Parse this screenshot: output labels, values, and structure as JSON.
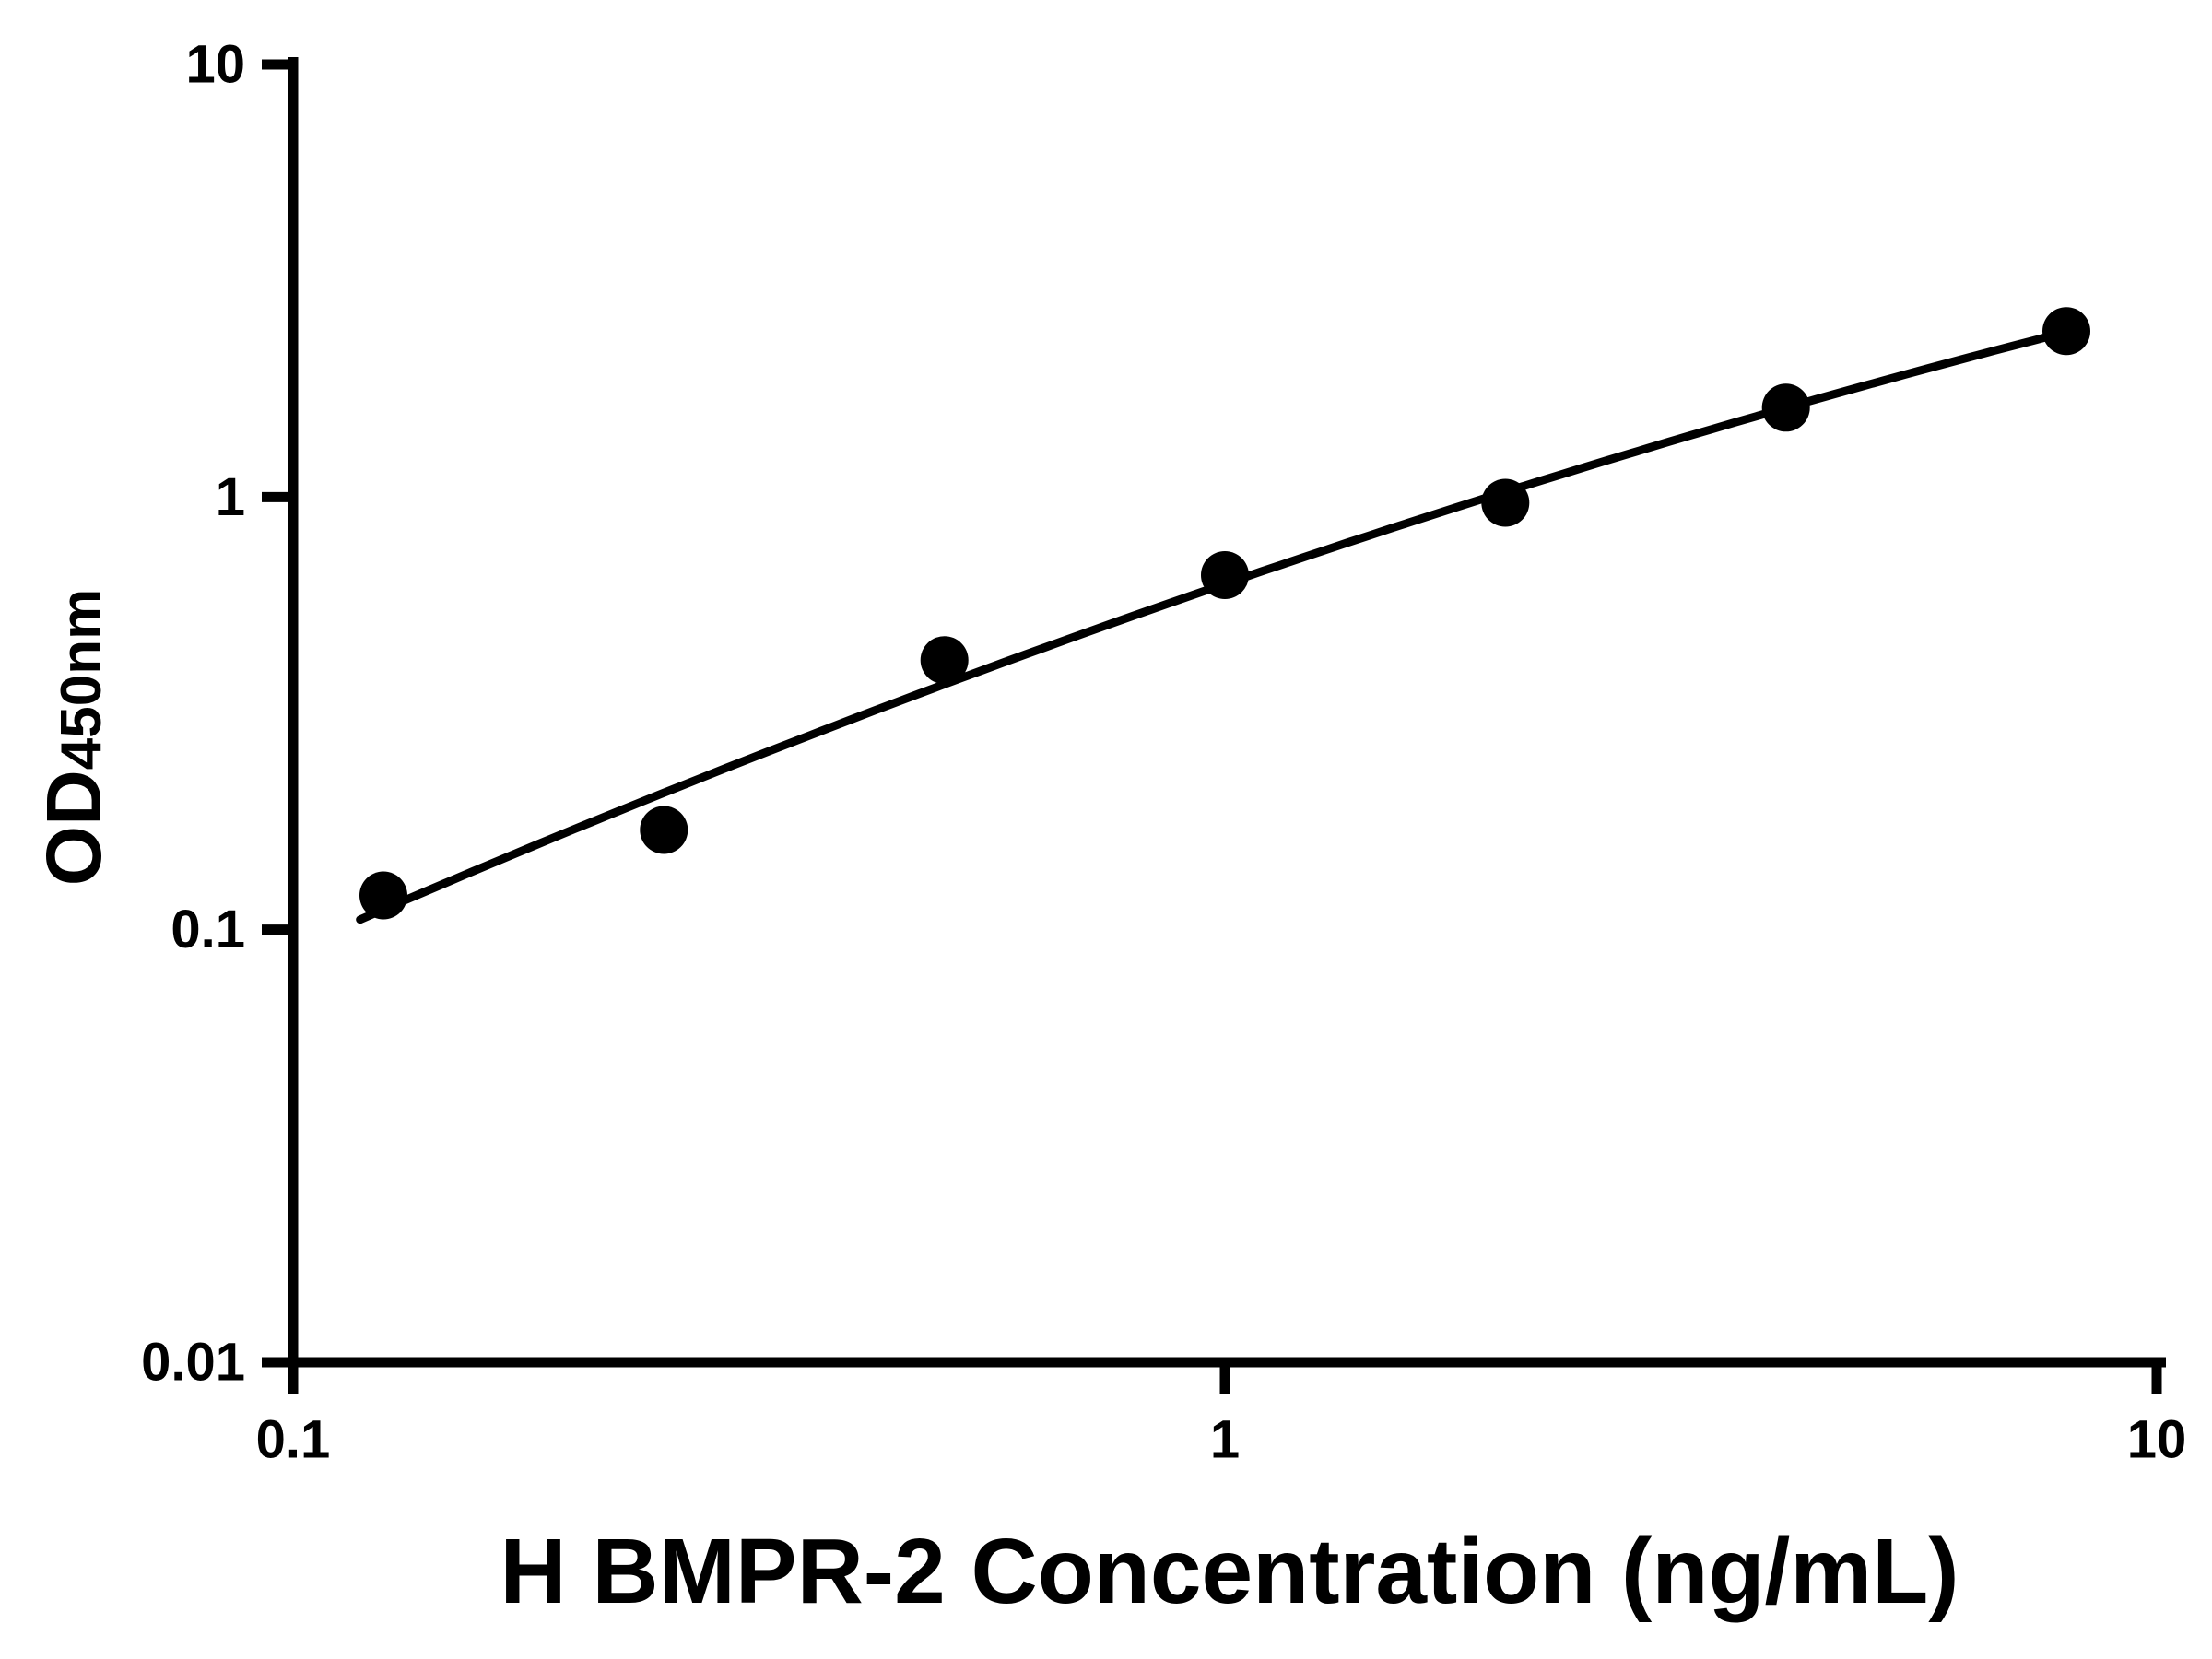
{
  "colors": {
    "foreground": "#000000",
    "background": "#ffffff"
  },
  "chart_data": {
    "type": "scatter",
    "title": "",
    "xlabel": "H BMPR-2 Concentration (ng/mL)",
    "ylabel_main": "OD",
    "ylabel_sub": "450nm",
    "x_scale": "log",
    "y_scale": "log",
    "xlim": [
      0.1,
      10
    ],
    "ylim": [
      0.01,
      10
    ],
    "grid": false,
    "legend": "none",
    "x_ticks": [
      {
        "value": 0.1,
        "label": "0.1"
      },
      {
        "value": 1,
        "label": "1"
      },
      {
        "value": 10,
        "label": "10"
      }
    ],
    "y_ticks": [
      {
        "value": 0.01,
        "label": "0.01"
      },
      {
        "value": 0.1,
        "label": "0.1"
      },
      {
        "value": 1,
        "label": "1"
      },
      {
        "value": 10,
        "label": "10"
      }
    ],
    "series": [
      {
        "name": "standard-curve",
        "marker": "circle",
        "color": "#000000",
        "points": [
          {
            "x": 0.125,
            "y": 0.12
          },
          {
            "x": 0.25,
            "y": 0.17
          },
          {
            "x": 0.5,
            "y": 0.42
          },
          {
            "x": 1,
            "y": 0.66
          },
          {
            "x": 2,
            "y": 0.97
          },
          {
            "x": 4,
            "y": 1.61
          },
          {
            "x": 8,
            "y": 2.42
          }
        ]
      }
    ],
    "trendline": {
      "type": "quadratic-loglog-fit",
      "visible": true
    }
  }
}
